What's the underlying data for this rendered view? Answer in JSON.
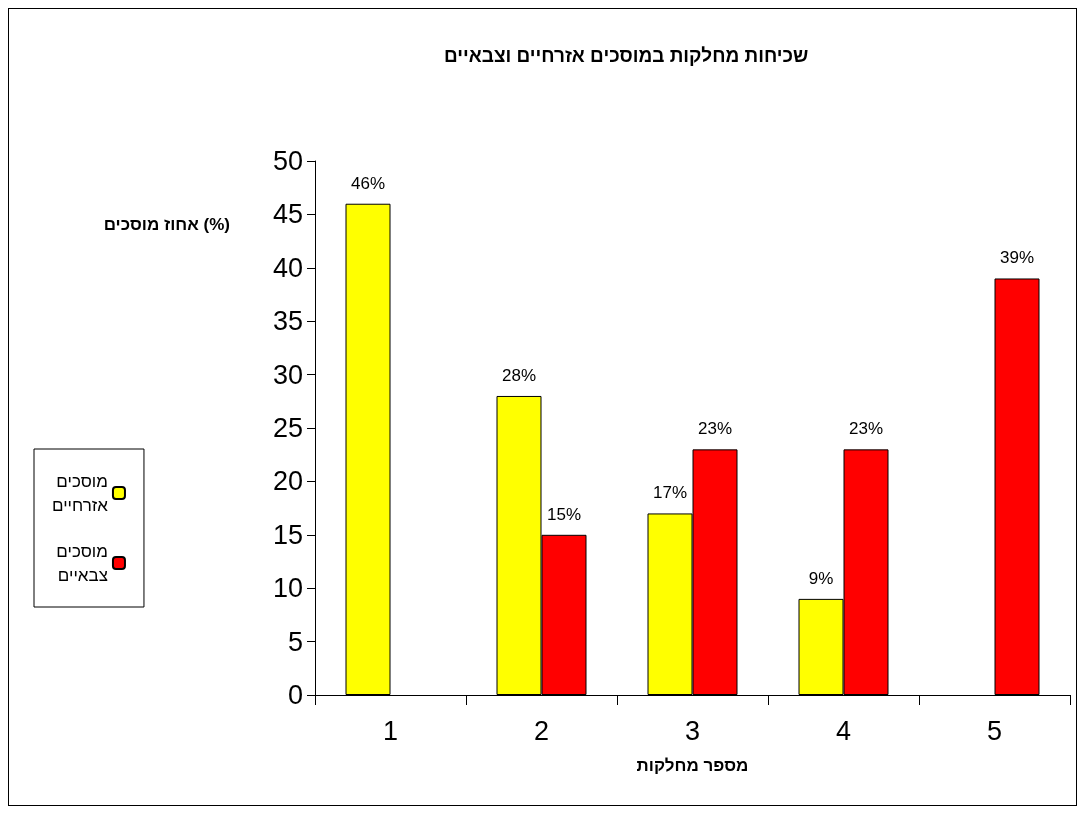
{
  "chart_data": {
    "type": "bar",
    "title": "שכיחות מחלקות במוסכים אזרחיים וצבאיים",
    "xlabel": "מספר מחלקות",
    "ylabel": "אחוז מוסכים (%)",
    "categories": [
      "1",
      "2",
      "3",
      "4",
      "5"
    ],
    "series": [
      {
        "name": "מוסכים אזרחיים",
        "color": "#ffff00",
        "values": [
          46,
          28,
          17,
          9,
          null
        ],
        "value_labels": [
          "46%",
          "28%",
          "17%",
          "9%",
          null
        ]
      },
      {
        "name": "מוסכים צבאיים",
        "color": "#ff0000",
        "values": [
          null,
          15,
          23,
          23,
          39
        ],
        "value_labels": [
          null,
          "15%",
          "23%",
          "23%",
          "39%"
        ]
      }
    ],
    "ylim": [
      0,
      50
    ],
    "yticks": [
      0,
      5,
      10,
      15,
      20,
      25,
      30,
      35,
      40,
      45,
      50
    ],
    "legend": "left"
  }
}
